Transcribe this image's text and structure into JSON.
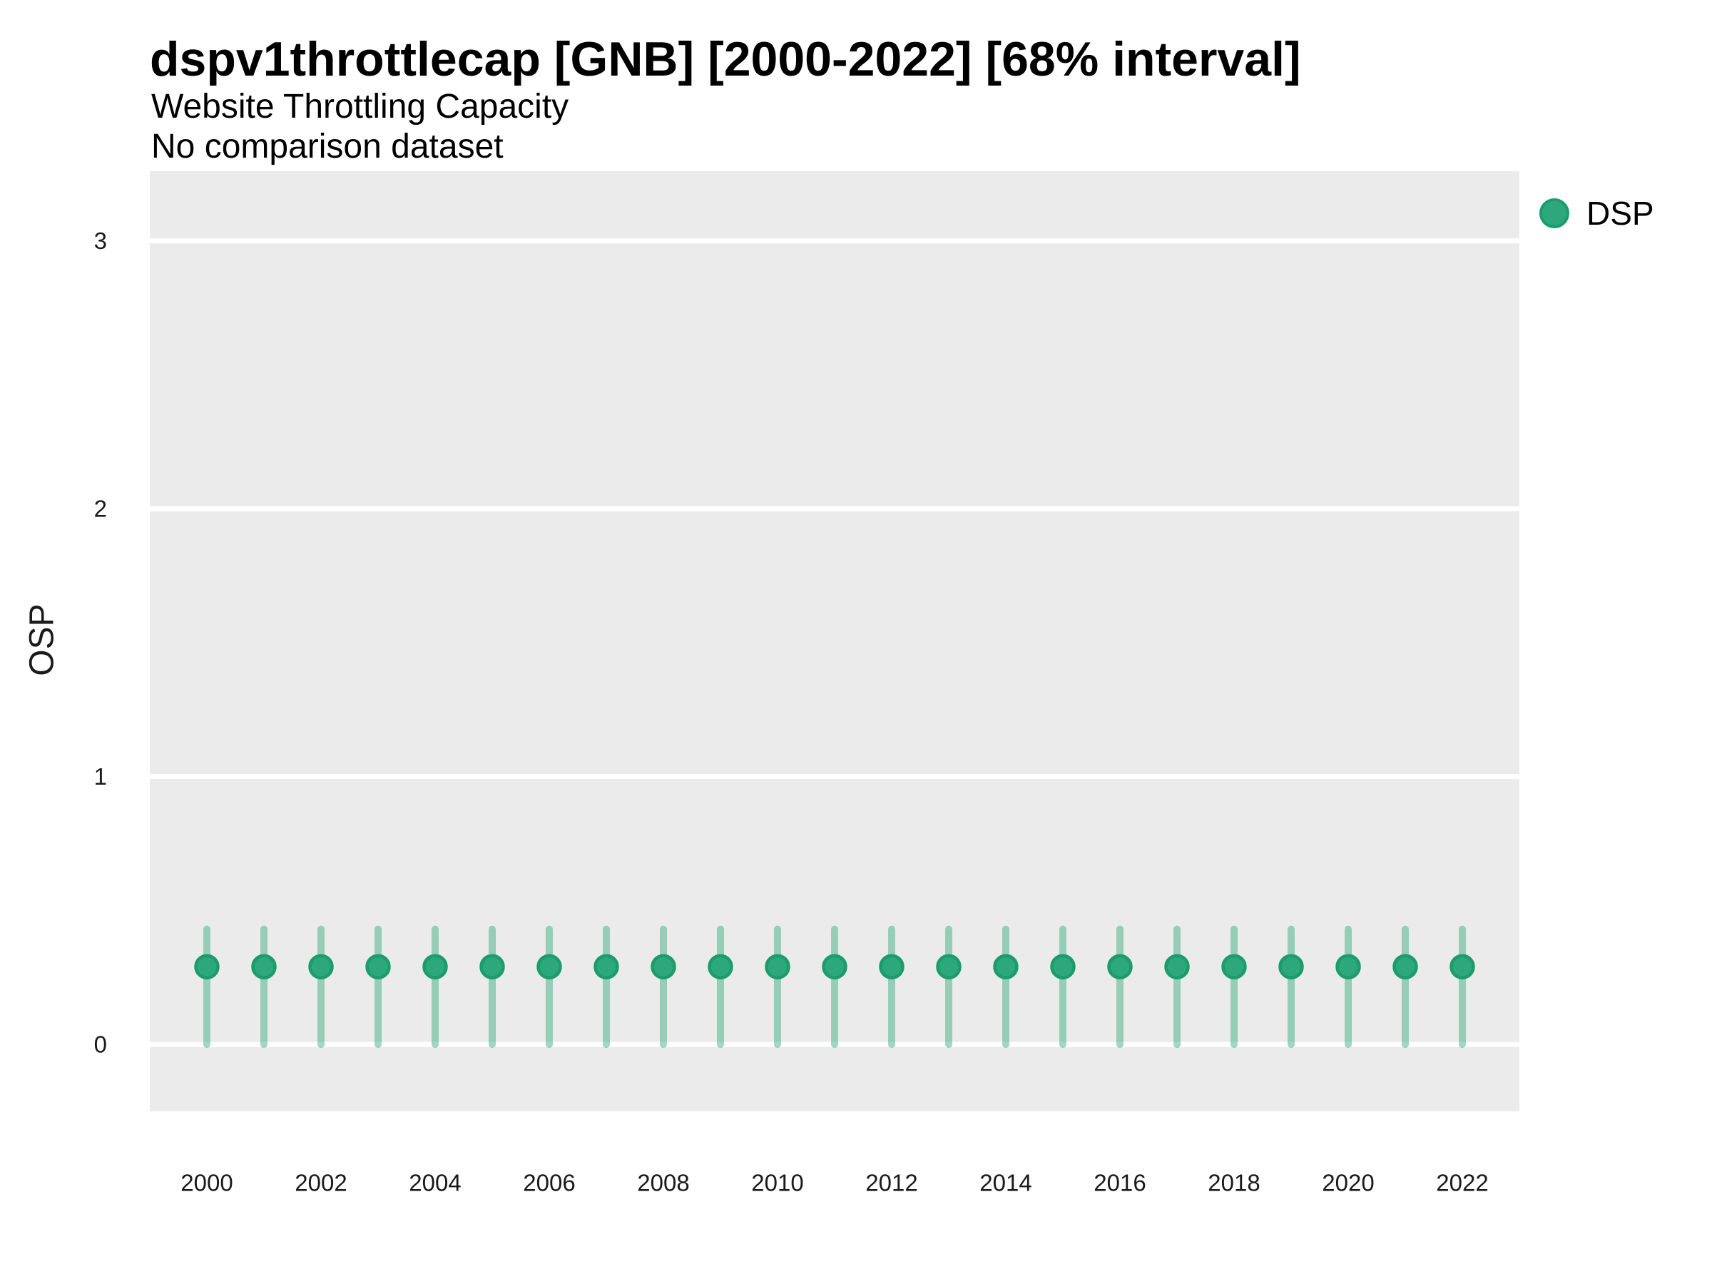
{
  "header": {
    "title": "dspv1throttlecap [GNB] [2000-2022] [68% interval]",
    "subtitle": "Website Throttling Capacity",
    "note": "No comparison dataset"
  },
  "colors": {
    "panel_background": "#EBEBEB",
    "gridline": "#FFFFFF",
    "tick_text": "#1A1A1A",
    "title_text": "#000000",
    "marker_green": "#2CA87C",
    "marker_ring_green": "#1C9C6C",
    "errorbar_green": "rgba(44,168,124,0.45)"
  },
  "legend": {
    "position": "right",
    "items": [
      {
        "label": "DSP",
        "marker": "circle",
        "color": "#2CA87C"
      }
    ]
  },
  "chart_data": {
    "type": "scatter",
    "title": "dspv1throttlecap [GNB] [2000-2022] [68% interval]",
    "subtitle": "Website Throttling Capacity",
    "note": "No comparison dataset",
    "xlabel": "",
    "ylabel": "OSP",
    "ylim": [
      -0.25,
      3.26
    ],
    "yticks": [
      0,
      1,
      2,
      3
    ],
    "xticks": [
      2000,
      2002,
      2004,
      2006,
      2008,
      2010,
      2012,
      2014,
      2016,
      2018,
      2020,
      2022
    ],
    "grid": "horizontal-major-white-on-gray",
    "legend_position": "right",
    "interval_label": "68% interval",
    "series": [
      {
        "name": "DSP",
        "marker_color": "#2CA87C",
        "marker_ring_color": "#1C9C6C",
        "errorbar_color": "rgba(44,168,124,0.45)",
        "x": [
          2000,
          2001,
          2002,
          2003,
          2004,
          2005,
          2006,
          2007,
          2008,
          2009,
          2010,
          2011,
          2012,
          2013,
          2014,
          2015,
          2016,
          2017,
          2018,
          2019,
          2020,
          2021,
          2022
        ],
        "y": [
          0.29,
          0.29,
          0.29,
          0.29,
          0.29,
          0.29,
          0.29,
          0.29,
          0.29,
          0.29,
          0.29,
          0.29,
          0.29,
          0.29,
          0.29,
          0.29,
          0.29,
          0.29,
          0.29,
          0.29,
          0.29,
          0.29,
          0.29
        ],
        "y_low": [
          0.0,
          0.0,
          0.0,
          0.0,
          0.0,
          0.0,
          0.0,
          0.0,
          0.0,
          0.0,
          0.0,
          0.0,
          0.0,
          0.0,
          0.0,
          0.0,
          0.0,
          0.0,
          0.0,
          0.0,
          0.0,
          0.0,
          0.0
        ],
        "y_high": [
          0.43,
          0.43,
          0.43,
          0.43,
          0.43,
          0.43,
          0.43,
          0.43,
          0.43,
          0.43,
          0.43,
          0.43,
          0.43,
          0.43,
          0.43,
          0.43,
          0.43,
          0.43,
          0.43,
          0.43,
          0.43,
          0.43,
          0.43
        ]
      }
    ]
  }
}
